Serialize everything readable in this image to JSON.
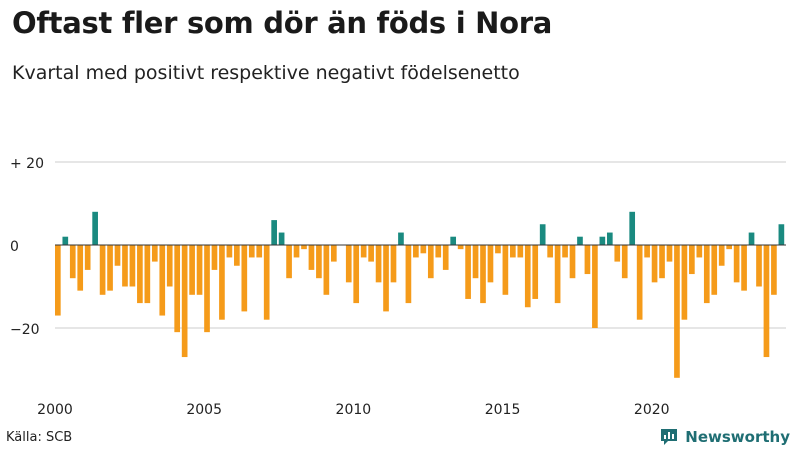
{
  "chart_data": {
    "type": "bar",
    "title": "Oftast fler som dör än föds i Nora",
    "subtitle": "Kvartal med positivt respektive negativt födelsenetto",
    "xlabel": "",
    "ylabel": "",
    "ylim": [
      -36,
      24
    ],
    "yticks": [
      {
        "value": 20,
        "label": "+ 20"
      },
      {
        "value": 0,
        "label": "0"
      },
      {
        "value": -20,
        "label": "−20"
      }
    ],
    "xticks": [
      {
        "year": 2000,
        "label": "2000"
      },
      {
        "year": 2005,
        "label": "2005"
      },
      {
        "year": 2010,
        "label": "2010"
      },
      {
        "year": 2015,
        "label": "2015"
      },
      {
        "year": 2020,
        "label": "2020"
      }
    ],
    "start_year": 2000,
    "periods_per_year": 4,
    "positive_color": "#1a8a80",
    "negative_color": "#f59b1a",
    "values": [
      -17,
      2,
      -8,
      -11,
      -6,
      8,
      -12,
      -11,
      -5,
      -10,
      -10,
      -14,
      -14,
      -4,
      -17,
      -10,
      -21,
      -27,
      -12,
      -12,
      -21,
      -6,
      -18,
      -3,
      -5,
      -16,
      -3,
      -3,
      -18,
      6,
      3,
      -8,
      -3,
      -1,
      -6,
      -8,
      -12,
      -4,
      0,
      -9,
      -14,
      -3,
      -4,
      -9,
      -16,
      -9,
      3,
      -14,
      -3,
      -2,
      -8,
      -3,
      -6,
      2,
      -1,
      -13,
      -8,
      -14,
      -9,
      -2,
      -12,
      -3,
      -3,
      -15,
      -13,
      5,
      -3,
      -14,
      -3,
      -8,
      2,
      -7,
      -20,
      2,
      3,
      -4,
      -8,
      8,
      -18,
      -3,
      -9,
      -8,
      -4,
      -32,
      -18,
      -7,
      -3,
      -14,
      -12,
      -5,
      -1,
      -9,
      -11,
      3,
      -10,
      -27,
      -12,
      5
    ]
  },
  "source": "Källa: SCB",
  "brand": {
    "name": "Newsworthy",
    "color": "#1f6e73"
  }
}
